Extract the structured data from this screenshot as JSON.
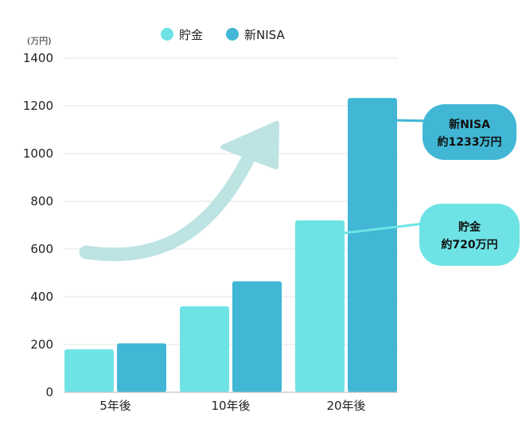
{
  "chart_data": {
    "type": "bar",
    "unit_label": "(万円)",
    "categories": [
      "5年後",
      "10年後",
      "20年後"
    ],
    "series": [
      {
        "name": "貯金",
        "color": "#6ee3e6",
        "values": [
          180,
          360,
          720
        ]
      },
      {
        "name": "新NISA",
        "color": "#41b7d5",
        "values": [
          205,
          465,
          1233
        ]
      }
    ],
    "ylim": [
      0,
      1400
    ],
    "yticks": [
      0,
      200,
      400,
      600,
      800,
      1000,
      1200,
      1400
    ],
    "grid": true,
    "legend_position": "top",
    "callouts": [
      {
        "series": "新NISA",
        "line1": "新NISA",
        "line2": "約1233万円",
        "color": "#41b7d5"
      },
      {
        "series": "貯金",
        "line1": "貯金",
        "line2": "約720万円",
        "color": "#6ee3e6"
      }
    ],
    "arrow_color": "#bde3e3"
  }
}
